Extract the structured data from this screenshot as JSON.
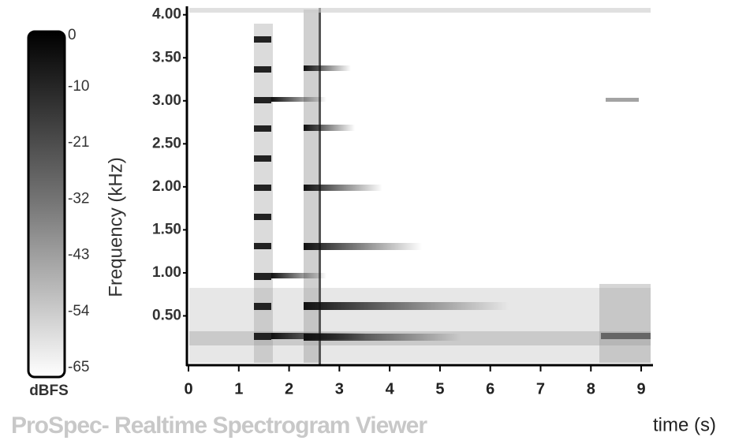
{
  "app_title": "ProSpec- Realtime Spectrogram Viewer",
  "colorbar": {
    "label": "dBFS",
    "lim": [
      0,
      -65
    ],
    "ticks": [
      0,
      -10,
      -21,
      -32,
      -43,
      -54,
      -65
    ]
  },
  "chart_data": {
    "type": "spectrogram",
    "ylabel": "Frequency (kHz)",
    "xlabel": "time (s)",
    "xlim": [
      0,
      9.25
    ],
    "ylim": [
      0,
      4.08
    ],
    "xticks": [
      0,
      1,
      2,
      3,
      4,
      5,
      6,
      7,
      8,
      9
    ],
    "yticks": [
      {
        "value": 0.5,
        "label": "0.50"
      },
      {
        "value": 1,
        "label": "1.00"
      },
      {
        "value": 1.5,
        "label": "1.50"
      },
      {
        "value": 2,
        "label": "2.00"
      },
      {
        "value": 2.5,
        "label": "2.50"
      },
      {
        "value": 3,
        "label": "3.00"
      },
      {
        "value": 3.5,
        "label": "3.50"
      },
      {
        "value": 4,
        "label": "4.00"
      }
    ]
  }
}
